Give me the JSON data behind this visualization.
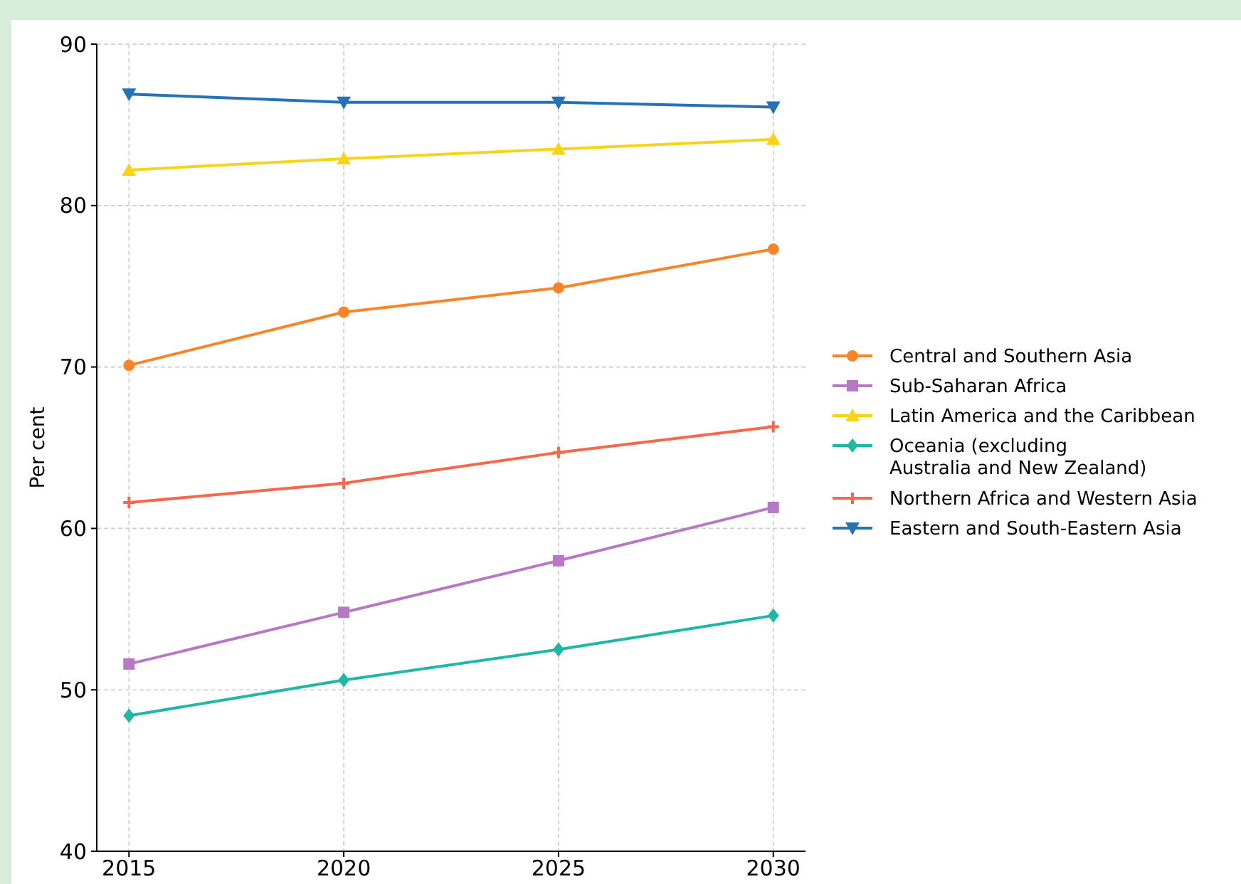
{
  "chart_data": {
    "type": "line",
    "ylabel": "Per cent",
    "x": [
      2015,
      2020,
      2025,
      2030
    ],
    "xlim": [
      2014.25,
      2030.75
    ],
    "xticks": [
      2015,
      2020,
      2025,
      2030
    ],
    "ylim": [
      40,
      90
    ],
    "yticks": [
      40,
      50,
      60,
      70,
      80,
      90
    ],
    "grid": true,
    "legend": "right",
    "line_style": "solid",
    "series": [
      {
        "name": "Central and Southern Asia",
        "color": "#f7862b",
        "marker": "circle",
        "values": [
          70.1,
          73.4,
          74.9,
          77.3
        ]
      },
      {
        "name": "Sub-Saharan Africa",
        "color": "#b679c4",
        "marker": "square",
        "values": [
          51.6,
          54.8,
          58.0,
          61.3
        ]
      },
      {
        "name": "Latin America and the Caribbean",
        "color": "#f7d31c",
        "marker": "triangle",
        "values": [
          82.2,
          82.9,
          83.5,
          84.1
        ]
      },
      {
        "name": "Oceania (excluding\nAustralia and New Zealand)",
        "color": "#20b6a8",
        "marker": "diamond",
        "values": [
          48.4,
          50.6,
          52.5,
          54.6
        ]
      },
      {
        "name": "Northern Africa and Western Asia",
        "color": "#f4694b",
        "marker": "cross",
        "values": [
          61.6,
          62.8,
          64.7,
          66.3
        ]
      },
      {
        "name": "Eastern and South-Eastern Asia",
        "color": "#2572b6",
        "marker": "triangle-down",
        "values": [
          86.9,
          86.4,
          86.4,
          86.1
        ]
      }
    ]
  }
}
